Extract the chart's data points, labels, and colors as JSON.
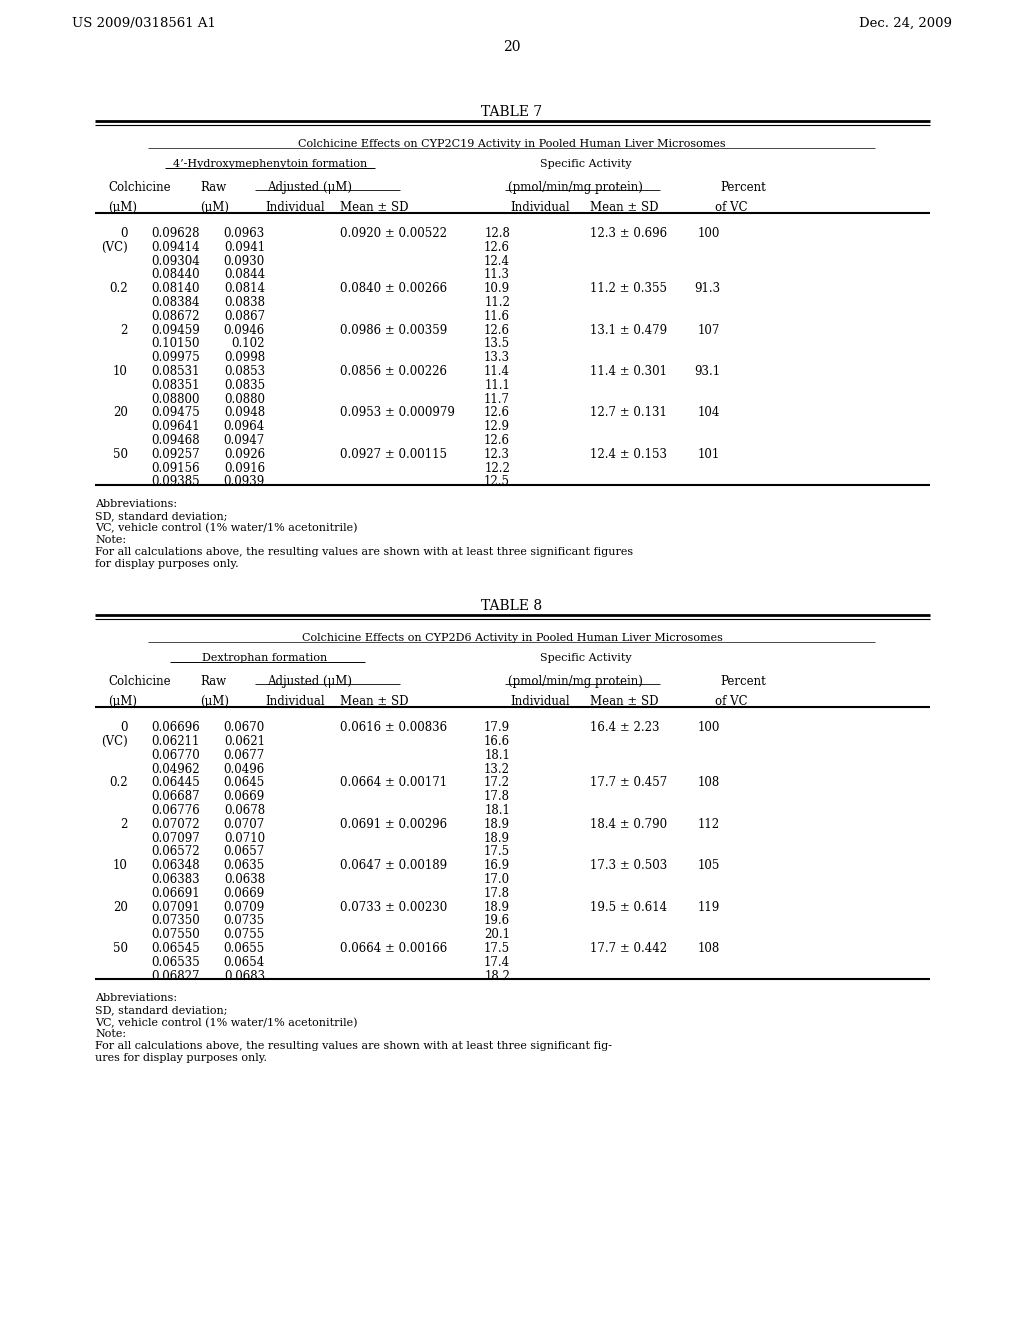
{
  "header_left": "US 2009/0318561 A1",
  "header_right": "Dec. 24, 2009",
  "page_num": "20",
  "table7_title": "TABLE 7",
  "table7_subtitle": "Colchicine Effects on CYP2C19 Activity in Pooled Human Liver Microsomes",
  "table7_subheader1": "4’-Hydroxymephenytoin formation",
  "table7_subheader2": "Specific Activity",
  "table7_col1": "Colchicine",
  "table7_col2": "Raw",
  "table7_col3": "Adjusted (μM)",
  "table7_col4": "(pmol/min/mg protein)",
  "table7_col5": "Percent",
  "table7_col1b": "(μM)",
  "table7_col2b": "(μM)",
  "table7_col3b_ind": "Individual",
  "table7_col3b_mean": "Mean ± SD",
  "table7_col4b_ind": "Individual",
  "table7_col4b_mean": "Mean ± SD",
  "table7_col5b": "of VC",
  "table7_rows": [
    [
      "0",
      "0.09628",
      "0.0963",
      "0.0920 ± 0.00522",
      "12.8",
      "12.3 ± 0.696",
      "100"
    ],
    [
      "(VC)",
      "0.09414",
      "0.0941",
      "",
      "12.6",
      "",
      ""
    ],
    [
      "",
      "0.09304",
      "0.0930",
      "",
      "12.4",
      "",
      ""
    ],
    [
      "",
      "0.08440",
      "0.0844",
      "",
      "11.3",
      "",
      ""
    ],
    [
      "0.2",
      "0.08140",
      "0.0814",
      "0.0840 ± 0.00266",
      "10.9",
      "11.2 ± 0.355",
      "91.3"
    ],
    [
      "",
      "0.08384",
      "0.0838",
      "",
      "11.2",
      "",
      ""
    ],
    [
      "",
      "0.08672",
      "0.0867",
      "",
      "11.6",
      "",
      ""
    ],
    [
      "2",
      "0.09459",
      "0.0946",
      "0.0986 ± 0.00359",
      "12.6",
      "13.1 ± 0.479",
      "107"
    ],
    [
      "",
      "0.10150",
      "0.102",
      "",
      "13.5",
      "",
      ""
    ],
    [
      "",
      "0.09975",
      "0.0998",
      "",
      "13.3",
      "",
      ""
    ],
    [
      "10",
      "0.08531",
      "0.0853",
      "0.0856 ± 0.00226",
      "11.4",
      "11.4 ± 0.301",
      "93.1"
    ],
    [
      "",
      "0.08351",
      "0.0835",
      "",
      "11.1",
      "",
      ""
    ],
    [
      "",
      "0.08800",
      "0.0880",
      "",
      "11.7",
      "",
      ""
    ],
    [
      "20",
      "0.09475",
      "0.0948",
      "0.0953 ± 0.000979",
      "12.6",
      "12.7 ± 0.131",
      "104"
    ],
    [
      "",
      "0.09641",
      "0.0964",
      "",
      "12.9",
      "",
      ""
    ],
    [
      "",
      "0.09468",
      "0.0947",
      "",
      "12.6",
      "",
      ""
    ],
    [
      "50",
      "0.09257",
      "0.0926",
      "0.0927 ± 0.00115",
      "12.3",
      "12.4 ± 0.153",
      "101"
    ],
    [
      "",
      "0.09156",
      "0.0916",
      "",
      "12.2",
      "",
      ""
    ],
    [
      "",
      "0.09385",
      "0.0939",
      "",
      "12.5",
      "",
      ""
    ]
  ],
  "table7_abbrev": [
    "Abbreviations:",
    "SD, standard deviation;",
    "VC, vehicle control (1% water/1% acetonitrile)",
    "Note:",
    "For all calculations above, the resulting values are shown with at least three significant figures",
    "for display purposes only."
  ],
  "table8_title": "TABLE 8",
  "table8_subtitle": "Colchicine Effects on CYP2D6 Activity in Pooled Human Liver Microsomes",
  "table8_subheader1": "Dextrophan formation",
  "table8_subheader2": "Specific Activity",
  "table8_col1": "Colchicine",
  "table8_col2": "Raw",
  "table8_col3": "Adjusted (μM)",
  "table8_col4": "(pmol/min/mg protein)",
  "table8_col5": "Percent",
  "table8_col1b": "(μM)",
  "table8_col2b": "(μM)",
  "table8_col3b_ind": "Individual",
  "table8_col3b_mean": "Mean ± SD",
  "table8_col4b_ind": "Individual",
  "table8_col4b_mean": "Mean ± SD",
  "table8_col5b": "of VC",
  "table8_rows": [
    [
      "0",
      "0.06696",
      "0.0670",
      "0.0616 ± 0.00836",
      "17.9",
      "16.4 ± 2.23",
      "100"
    ],
    [
      "(VC)",
      "0.06211",
      "0.0621",
      "",
      "16.6",
      "",
      ""
    ],
    [
      "",
      "0.06770",
      "0.0677",
      "",
      "18.1",
      "",
      ""
    ],
    [
      "",
      "0.04962",
      "0.0496",
      "",
      "13.2",
      "",
      ""
    ],
    [
      "0.2",
      "0.06445",
      "0.0645",
      "0.0664 ± 0.00171",
      "17.2",
      "17.7 ± 0.457",
      "108"
    ],
    [
      "",
      "0.06687",
      "0.0669",
      "",
      "17.8",
      "",
      ""
    ],
    [
      "",
      "0.06776",
      "0.0678",
      "",
      "18.1",
      "",
      ""
    ],
    [
      "2",
      "0.07072",
      "0.0707",
      "0.0691 ± 0.00296",
      "18.9",
      "18.4 ± 0.790",
      "112"
    ],
    [
      "",
      "0.07097",
      "0.0710",
      "",
      "18.9",
      "",
      ""
    ],
    [
      "",
      "0.06572",
      "0.0657",
      "",
      "17.5",
      "",
      ""
    ],
    [
      "10",
      "0.06348",
      "0.0635",
      "0.0647 ± 0.00189",
      "16.9",
      "17.3 ± 0.503",
      "105"
    ],
    [
      "",
      "0.06383",
      "0.0638",
      "",
      "17.0",
      "",
      ""
    ],
    [
      "",
      "0.06691",
      "0.0669",
      "",
      "17.8",
      "",
      ""
    ],
    [
      "20",
      "0.07091",
      "0.0709",
      "0.0733 ± 0.00230",
      "18.9",
      "19.5 ± 0.614",
      "119"
    ],
    [
      "",
      "0.07350",
      "0.0735",
      "",
      "19.6",
      "",
      ""
    ],
    [
      "",
      "0.07550",
      "0.0755",
      "",
      "20.1",
      "",
      ""
    ],
    [
      "50",
      "0.06545",
      "0.0655",
      "0.0664 ± 0.00166",
      "17.5",
      "17.7 ± 0.442",
      "108"
    ],
    [
      "",
      "0.06535",
      "0.0654",
      "",
      "17.4",
      "",
      ""
    ],
    [
      "",
      "0.06827",
      "0.0683",
      "",
      "18.2",
      "",
      ""
    ]
  ],
  "table8_abbrev": [
    "Abbreviations:",
    "SD, standard deviation;",
    "VC, vehicle control (1% water/1% acetonitrile)",
    "Note:",
    "For all calculations above, the resulting values are shown with at least three significant fig-",
    "ures for display purposes only."
  ],
  "bg_color": "#ffffff",
  "text_color": "#000000"
}
